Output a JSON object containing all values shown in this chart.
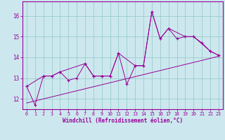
{
  "xlabel": "Windchill (Refroidissement éolien,°C)",
  "bg_color": "#cce8ee",
  "grid_color": "#99cccc",
  "line_color": "#990099",
  "xlim": [
    -0.5,
    23.5
  ],
  "ylim": [
    11.5,
    16.7
  ],
  "xticks": [
    0,
    1,
    2,
    3,
    4,
    5,
    6,
    7,
    8,
    9,
    10,
    11,
    12,
    13,
    14,
    15,
    16,
    17,
    18,
    19,
    20,
    21,
    22,
    23
  ],
  "yticks": [
    12,
    13,
    14,
    15,
    16
  ],
  "main_x": [
    0,
    1,
    2,
    3,
    4,
    5,
    6,
    7,
    8,
    9,
    10,
    11,
    12,
    13,
    14,
    15,
    16,
    17,
    18,
    19,
    20,
    21,
    22,
    23
  ],
  "main_y": [
    12.6,
    11.7,
    13.1,
    13.1,
    13.3,
    12.9,
    13.0,
    13.7,
    13.1,
    13.1,
    13.1,
    14.2,
    12.7,
    13.6,
    13.6,
    16.2,
    14.9,
    15.4,
    14.9,
    15.0,
    15.0,
    14.7,
    14.3,
    14.1
  ],
  "line2_x": [
    0,
    2,
    3,
    4,
    7,
    8,
    9,
    10,
    11,
    13,
    14,
    15,
    16,
    17,
    19,
    20,
    22,
    23
  ],
  "line2_y": [
    12.6,
    13.1,
    13.1,
    13.3,
    13.7,
    13.1,
    13.1,
    13.1,
    14.2,
    13.6,
    13.6,
    16.2,
    14.9,
    15.4,
    15.0,
    15.0,
    14.3,
    14.1
  ],
  "trend_x": [
    0,
    23
  ],
  "trend_y": [
    11.8,
    14.05
  ]
}
